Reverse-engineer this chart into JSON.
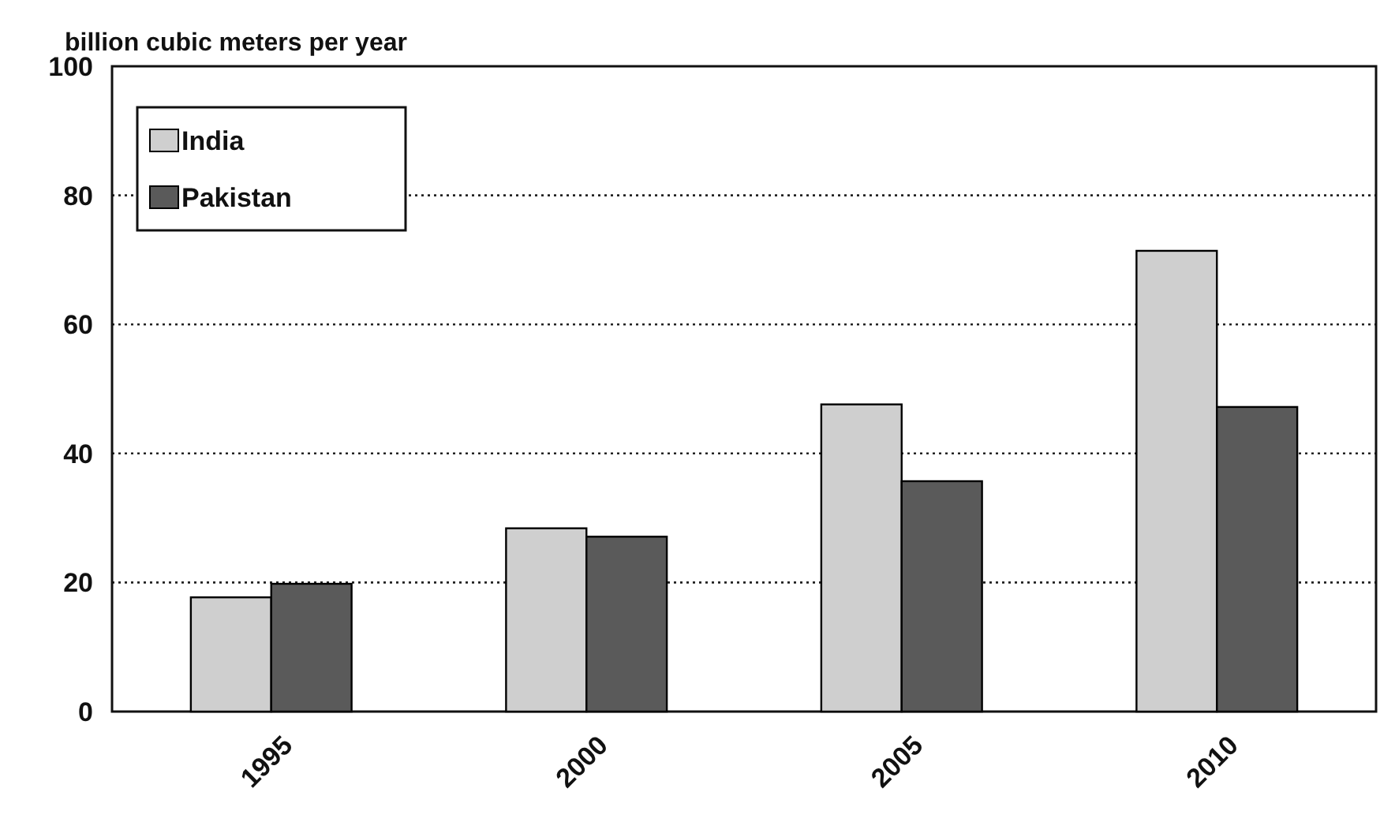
{
  "chart_data": {
    "type": "bar",
    "ylabel": "billion cubic meters per year",
    "categories": [
      "1995",
      "2000",
      "2005",
      "2010"
    ],
    "series": [
      {
        "name": "India",
        "color": "#cfcfcf",
        "values": [
          17.7,
          28.4,
          47.6,
          71.4
        ]
      },
      {
        "name": "Pakistan",
        "color": "#5a5a5a",
        "values": [
          19.8,
          27.1,
          35.7,
          47.2
        ]
      }
    ],
    "ylim": [
      0,
      100
    ],
    "yticks": [
      0,
      20,
      40,
      60,
      80,
      100
    ],
    "grid": "y",
    "legend": "top left"
  }
}
